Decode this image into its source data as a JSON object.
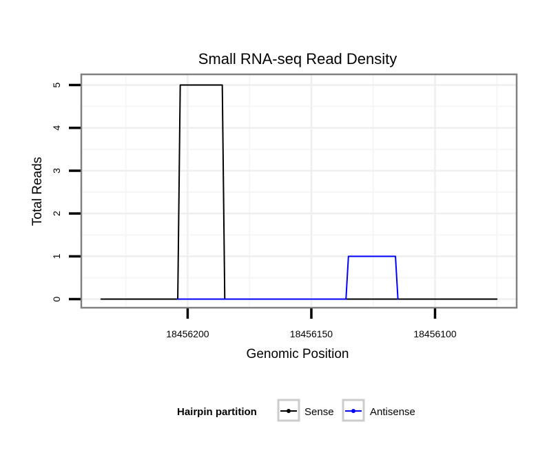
{
  "chart_data": {
    "type": "line",
    "title": "Small RNA-seq Read Density",
    "xlabel": "Genomic Position",
    "ylabel": "Total Reads",
    "x_reversed": true,
    "xlim": [
      18456243,
      18456067
    ],
    "ylim": [
      -0.2,
      5.25
    ],
    "x_ticks": [
      18456200,
      18456150,
      18456100
    ],
    "x_tick_labels": [
      "18456200",
      "18456150",
      "18456100"
    ],
    "y_ticks": [
      0,
      1,
      2,
      3,
      4,
      5
    ],
    "y_tick_labels": [
      "0",
      "1",
      "2",
      "3",
      "4",
      "5"
    ],
    "grid": true,
    "series": [
      {
        "name": "Sense",
        "color": "#000000",
        "points": [
          [
            18456235,
            0
          ],
          [
            18456204,
            0
          ],
          [
            18456203,
            5
          ],
          [
            18456186,
            5
          ],
          [
            18456185,
            0
          ],
          [
            18456136,
            0
          ],
          [
            18456135,
            0
          ],
          [
            18456116,
            0
          ],
          [
            18456115,
            0
          ],
          [
            18456075,
            0
          ]
        ]
      },
      {
        "name": "Antisense",
        "color": "#0000ff",
        "points": [
          [
            18456204,
            0
          ],
          [
            18456185,
            0
          ],
          [
            18456136,
            0
          ],
          [
            18456135,
            1
          ],
          [
            18456116,
            1
          ],
          [
            18456115,
            0
          ]
        ]
      }
    ],
    "legend": {
      "title": "Hairpin partition",
      "position": "bottom",
      "entries": [
        "Sense",
        "Antisense"
      ]
    }
  }
}
